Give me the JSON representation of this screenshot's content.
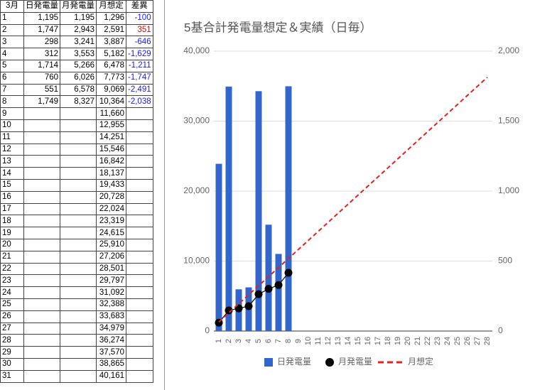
{
  "table": {
    "header": [
      "3月",
      "日発電量",
      "月発電量",
      "月想定",
      "差異"
    ],
    "rows": [
      [
        "1",
        "1,195",
        "1,195",
        "1,296",
        "-100"
      ],
      [
        "2",
        "1,747",
        "2,943",
        "2,591",
        "351"
      ],
      [
        "3",
        "298",
        "3,241",
        "3,887",
        "-646"
      ],
      [
        "4",
        "312",
        "3,553",
        "5,182",
        "-1,629"
      ],
      [
        "5",
        "1,714",
        "5,266",
        "6,478",
        "-1,211"
      ],
      [
        "6",
        "760",
        "6,026",
        "7,773",
        "-1,747"
      ],
      [
        "7",
        "551",
        "6,578",
        "9,069",
        "-2,491"
      ],
      [
        "8",
        "1,749",
        "8,327",
        "10,364",
        "-2,038"
      ],
      [
        "9",
        null,
        null,
        "11,660",
        null
      ],
      [
        "10",
        null,
        null,
        "12,955",
        null
      ],
      [
        "11",
        null,
        null,
        "14,251",
        null
      ],
      [
        "12",
        null,
        null,
        "15,546",
        null
      ],
      [
        "13",
        null,
        null,
        "16,842",
        null
      ],
      [
        "14",
        null,
        null,
        "18,137",
        null
      ],
      [
        "15",
        null,
        null,
        "19,433",
        null
      ],
      [
        "16",
        null,
        null,
        "20,728",
        null
      ],
      [
        "17",
        null,
        null,
        "22,024",
        null
      ],
      [
        "18",
        null,
        null,
        "23,319",
        null
      ],
      [
        "19",
        null,
        null,
        "24,615",
        null
      ],
      [
        "20",
        null,
        null,
        "25,910",
        null
      ],
      [
        "21",
        null,
        null,
        "27,206",
        null
      ],
      [
        "22",
        null,
        null,
        "28,501",
        null
      ],
      [
        "23",
        null,
        null,
        "29,797",
        null
      ],
      [
        "24",
        null,
        null,
        "31,092",
        null
      ],
      [
        "25",
        null,
        null,
        "32,388",
        null
      ],
      [
        "26",
        null,
        null,
        "33,683",
        null
      ],
      [
        "27",
        null,
        null,
        "34,979",
        null
      ],
      [
        "28",
        null,
        null,
        "36,274",
        null
      ],
      [
        "29",
        null,
        null,
        "37,570",
        null
      ],
      [
        "30",
        null,
        null,
        "38,865",
        null
      ],
      [
        "31",
        null,
        null,
        "40,161",
        null
      ]
    ]
  },
  "chart_data": {
    "type": "combo",
    "title": "5基合計発電量想定＆実績（日毎）",
    "categories": [
      1,
      2,
      3,
      4,
      5,
      6,
      7,
      8,
      9,
      10,
      11,
      12,
      13,
      14,
      15,
      16,
      17,
      18,
      19,
      20,
      21,
      22,
      23,
      24,
      25,
      26,
      27,
      28
    ],
    "ylim": [
      0,
      40000
    ],
    "yticks": [
      0,
      {
        "value": 10000,
        "label": "10,000"
      },
      {
        "value": 20000,
        "label": "20,000"
      },
      {
        "value": 30000,
        "label": "30,000"
      },
      {
        "value": 40000,
        "label": "40,000"
      }
    ],
    "y2lim": [
      0,
      2000
    ],
    "y2ticks": [
      0,
      500,
      {
        "value": 1000,
        "label": "1,000"
      },
      {
        "value": 1500,
        "label": "1,500"
      },
      {
        "value": 2000,
        "label": "2,000"
      }
    ],
    "grid": true,
    "legend": "bottom",
    "series": [
      {
        "name": "日発電量",
        "type": "bar",
        "axis": "y2",
        "color": "#3366cc",
        "values": [
          1195,
          1747,
          298,
          312,
          1714,
          760,
          551,
          1749,
          null,
          null,
          null,
          null,
          null,
          null,
          null,
          null,
          null,
          null,
          null,
          null,
          null,
          null,
          null,
          null,
          null,
          null,
          null,
          null
        ]
      },
      {
        "name": "月発電量",
        "type": "line-points",
        "axis": "y",
        "color": "#000000",
        "values": [
          1195,
          2943,
          3241,
          3553,
          5266,
          6026,
          6578,
          8327,
          null,
          null,
          null,
          null,
          null,
          null,
          null,
          null,
          null,
          null,
          null,
          null,
          null,
          null,
          null,
          null,
          null,
          null,
          null,
          null
        ]
      },
      {
        "name": "月想定",
        "type": "dashed-line",
        "axis": "y",
        "color": "#e8201c",
        "values": [
          1296,
          2591,
          3887,
          5182,
          6478,
          7773,
          9069,
          10364,
          11660,
          12955,
          14251,
          15546,
          16842,
          18137,
          19433,
          20728,
          22024,
          23319,
          24615,
          25910,
          27206,
          28501,
          29797,
          31092,
          32388,
          33683,
          34979,
          36274
        ]
      }
    ]
  }
}
